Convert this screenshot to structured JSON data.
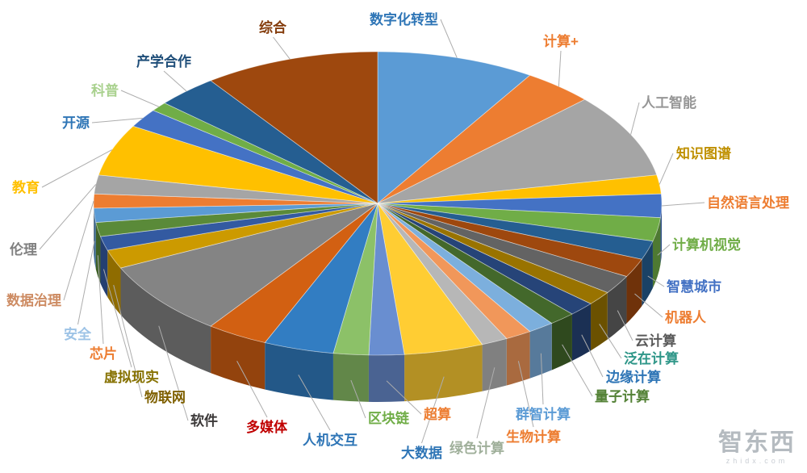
{
  "page": {
    "background": "#ffffff"
  },
  "watermark": {
    "text": "智东西",
    "subtext": "zhidx.com"
  },
  "chart_data": {
    "type": "pie",
    "style": "3d-pie",
    "title": "",
    "legend_position": "none",
    "labels_position": "outside-with-leader-lines",
    "start_angle_deg": -90,
    "direction": "clockwise",
    "values_are_estimated_percent": true,
    "leader_line_color": "#ADADAD",
    "slices": [
      {
        "label": "数字化转型",
        "value": 9,
        "color": "#5B9BD5",
        "label_color": "#2E75B6"
      },
      {
        "label": "计算+",
        "value": 4,
        "color": "#ED7D31",
        "label_color": "#ED7D31"
      },
      {
        "label": "人工智能",
        "value": 9,
        "color": "#A5A5A5",
        "label_color": "#969696"
      },
      {
        "label": "知识图谱",
        "value": 2,
        "color": "#FFC000",
        "label_color": "#BF9000"
      },
      {
        "label": "自然语言处理",
        "value": 2.5,
        "color": "#4472C4",
        "label_color": "#ED7D31"
      },
      {
        "label": "计算机视觉",
        "value": 2.5,
        "color": "#70AD47",
        "label_color": "#70AD47"
      },
      {
        "label": "智慧城市",
        "value": 2,
        "color": "#255E91",
        "label_color": "#4472C4"
      },
      {
        "label": "机器人",
        "value": 2,
        "color": "#9E480E",
        "label_color": "#ED7D31"
      },
      {
        "label": "云计算",
        "value": 2,
        "color": "#636363",
        "label_color": "#595959"
      },
      {
        "label": "泛在计算",
        "value": 1.5,
        "color": "#997300",
        "label_color": "#2E9688"
      },
      {
        "label": "边缘计算",
        "value": 1.5,
        "color": "#264478",
        "label_color": "#2E75B6"
      },
      {
        "label": "量子计算",
        "value": 1.5,
        "color": "#43682B",
        "label_color": "#538135"
      },
      {
        "label": "群智计算",
        "value": 1.5,
        "color": "#7CAFDD",
        "label_color": "#5B9BD5"
      },
      {
        "label": "生物计算",
        "value": 1.5,
        "color": "#F1975A",
        "label_color": "#ED7D31"
      },
      {
        "label": "绿色计算",
        "value": 1.5,
        "color": "#B7B7B7",
        "label_color": "#9FAF9A"
      },
      {
        "label": "大数据",
        "value": 4.5,
        "color": "#FFCD33",
        "label_color": "#2E75B6"
      },
      {
        "label": "超算",
        "value": 2,
        "color": "#698ED0",
        "label_color": "#ED7D31"
      },
      {
        "label": "区块链",
        "value": 2,
        "color": "#8CC168",
        "label_color": "#70AD47"
      },
      {
        "label": "人机交互",
        "value": 4,
        "color": "#327DC2",
        "label_color": "#2E75B6"
      },
      {
        "label": "多媒体",
        "value": 3.5,
        "color": "#D26012",
        "label_color": "#C00000"
      },
      {
        "label": "软件",
        "value": 8,
        "color": "#848484",
        "label_color": "#3B3838"
      },
      {
        "label": "物联网",
        "value": 2,
        "color": "#CC9A00",
        "label_color": "#7F6000"
      },
      {
        "label": "虚拟现实",
        "value": 1.5,
        "color": "#335AA1",
        "label_color": "#867100"
      },
      {
        "label": "芯片",
        "value": 1.5,
        "color": "#5A8A39",
        "label_color": "#ED7D31"
      },
      {
        "label": "安全",
        "value": 1.5,
        "color": "#5B9BD5",
        "label_color": "#9DC3E6"
      },
      {
        "label": "数据治理",
        "value": 1.5,
        "color": "#ED7D31",
        "label_color": "#CD8B62"
      },
      {
        "label": "伦理",
        "value": 2,
        "color": "#A5A5A5",
        "label_color": "#808080"
      },
      {
        "label": "教育",
        "value": 5.5,
        "color": "#FFC000",
        "label_color": "#FFC000"
      },
      {
        "label": "开源",
        "value": 2,
        "color": "#4472C4",
        "label_color": "#2E75B6"
      },
      {
        "label": "科普",
        "value": 1,
        "color": "#70AD47",
        "label_color": "#A9D18E"
      },
      {
        "label": "产学合作",
        "value": 3.5,
        "color": "#255E91",
        "label_color": "#1F4E79"
      },
      {
        "label": "综合",
        "value": 10,
        "color": "#9E480E",
        "label_color": "#843C0C"
      }
    ]
  }
}
